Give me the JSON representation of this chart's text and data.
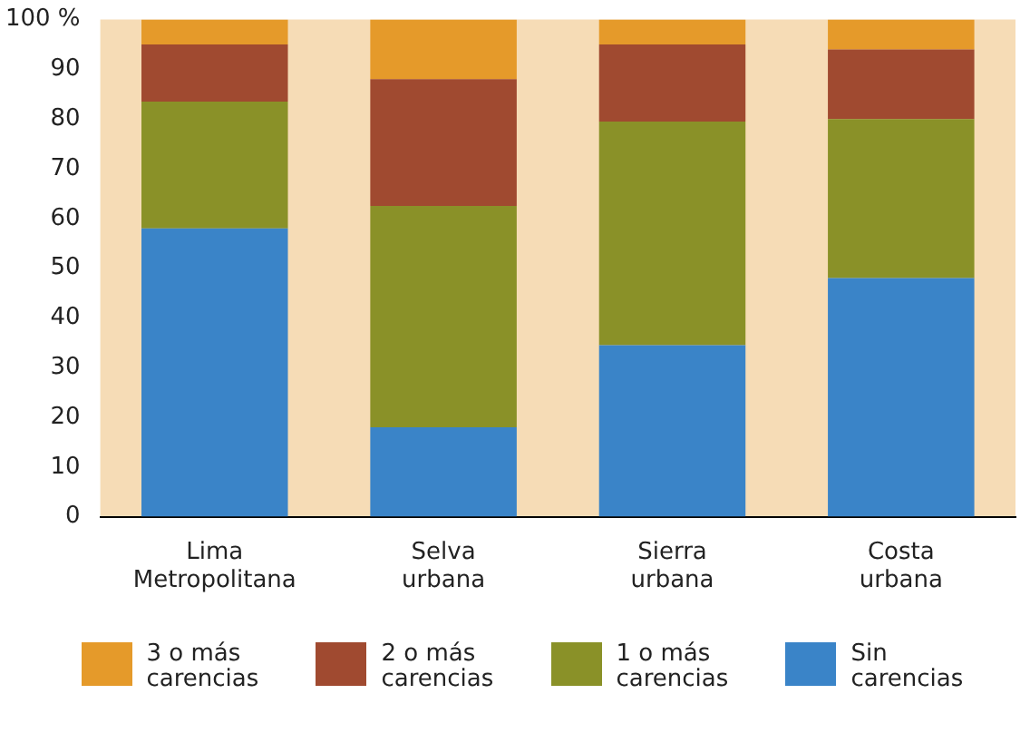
{
  "chart_data": {
    "type": "bar",
    "stacked": true,
    "categories": [
      "Lima Metropolitana",
      "Selva urbana",
      "Sierra urbana",
      "Costa urbana"
    ],
    "series": [
      {
        "name": "Sin carencias",
        "color": "#3a84c8",
        "values": [
          58,
          18,
          34.5,
          48
        ]
      },
      {
        "name": "1 o más carencias",
        "color": "#8a9128",
        "values": [
          25.5,
          44.5,
          45,
          32
        ]
      },
      {
        "name": "2 o más carencias",
        "color": "#a04a30",
        "values": [
          11.5,
          25.5,
          15.5,
          14
        ]
      },
      {
        "name": "3 o más carencias",
        "color": "#e59a2a",
        "values": [
          5,
          12,
          5,
          6
        ]
      }
    ],
    "ylim": [
      0,
      100
    ],
    "yticks": [
      0,
      10,
      20,
      30,
      40,
      50,
      60,
      70,
      80,
      90,
      {
        "value": 100,
        "label": "100 %"
      }
    ],
    "grid": false,
    "legend": "bottom"
  }
}
